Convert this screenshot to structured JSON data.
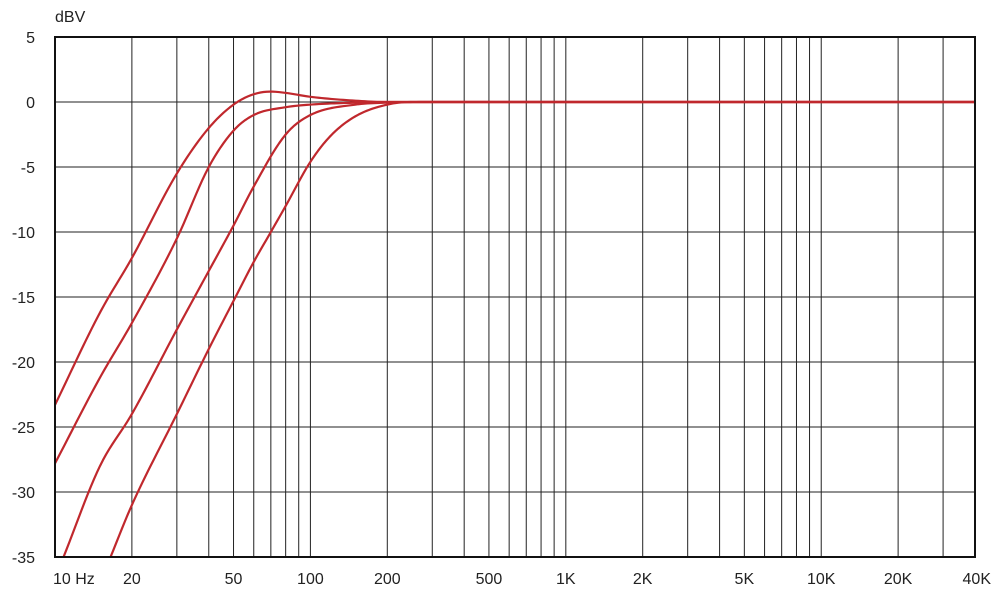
{
  "chart_data": {
    "type": "line",
    "title": "",
    "xlabel": "",
    "ylabel": "dBV",
    "x_scale": "log",
    "xlim": [
      10,
      40000
    ],
    "ylim": [
      -35,
      5
    ],
    "grid": true,
    "legend": "none",
    "line_color": "#c0282d",
    "x_ticks": [
      {
        "value": 10,
        "label": "10 Hz"
      },
      {
        "value": 20,
        "label": "20"
      },
      {
        "value": 50,
        "label": "50"
      },
      {
        "value": 100,
        "label": "100"
      },
      {
        "value": 200,
        "label": "200"
      },
      {
        "value": 500,
        "label": "500"
      },
      {
        "value": 1000,
        "label": "1K"
      },
      {
        "value": 2000,
        "label": "2K"
      },
      {
        "value": 5000,
        "label": "5K"
      },
      {
        "value": 10000,
        "label": "10K"
      },
      {
        "value": 20000,
        "label": "20K"
      },
      {
        "value": 40000,
        "label": "40K"
      }
    ],
    "y_ticks": [
      {
        "value": 5,
        "label": "5"
      },
      {
        "value": 0,
        "label": "0"
      },
      {
        "value": -5,
        "label": "-5"
      },
      {
        "value": -10,
        "label": "-10"
      },
      {
        "value": -15,
        "label": "-15"
      },
      {
        "value": -20,
        "label": "-20"
      },
      {
        "value": -25,
        "label": "-25"
      },
      {
        "value": -30,
        "label": "-30"
      },
      {
        "value": -35,
        "label": "-35"
      }
    ],
    "x_grid": [
      10,
      20,
      30,
      40,
      50,
      60,
      70,
      80,
      90,
      100,
      200,
      300,
      400,
      500,
      600,
      700,
      800,
      900,
      1000,
      2000,
      3000,
      4000,
      5000,
      6000,
      7000,
      8000,
      9000,
      10000,
      20000,
      30000,
      40000
    ],
    "series": [
      {
        "x": [
          10,
          15,
          20,
          30,
          40,
          50,
          60,
          70,
          80,
          100,
          150,
          200,
          300,
          40000
        ],
        "y": [
          -23.3,
          -16.2,
          -12.0,
          -5.5,
          -2.0,
          -0.2,
          0.6,
          0.8,
          0.7,
          0.4,
          0.1,
          0,
          0,
          0
        ]
      },
      {
        "x": [
          10,
          15,
          20,
          30,
          40,
          50,
          60,
          80,
          100,
          150,
          200,
          300,
          40000
        ],
        "y": [
          -27.8,
          -21.2,
          -17.0,
          -10.5,
          -5.0,
          -2.2,
          -1.0,
          -0.4,
          -0.2,
          -0.05,
          0,
          0,
          0
        ]
      },
      {
        "x": [
          10.8,
          15,
          20,
          30,
          40,
          50,
          60,
          80,
          100,
          150,
          200,
          300,
          40000
        ],
        "y": [
          -35,
          -28.0,
          -24.0,
          -17.5,
          -13.0,
          -9.5,
          -6.5,
          -2.5,
          -1.0,
          -0.2,
          -0.05,
          0,
          0
        ]
      },
      {
        "x": [
          16.5,
          20,
          30,
          40,
          50,
          60,
          70,
          80,
          100,
          120,
          150,
          200,
          250,
          300,
          40000
        ],
        "y": [
          -35,
          -31.0,
          -24.0,
          -19.0,
          -15.3,
          -12.3,
          -10.0,
          -8.0,
          -4.6,
          -2.6,
          -1.1,
          -0.2,
          0,
          0,
          0
        ]
      }
    ]
  }
}
